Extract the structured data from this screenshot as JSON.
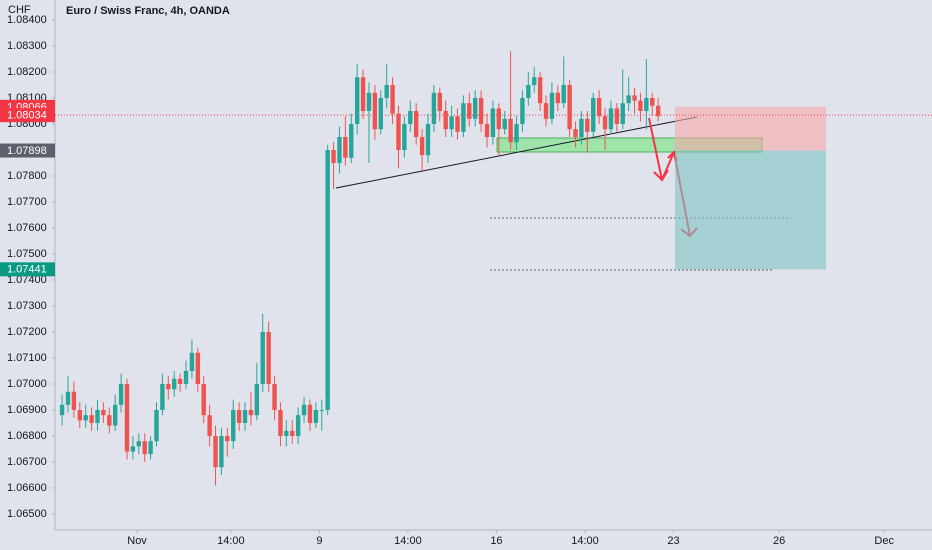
{
  "chart_data": {
    "type": "candlestick",
    "title": "Euro / Swiss Franc, 4h, OANDA",
    "unit": "CHF",
    "up_color": "#26a69a",
    "down_color": "#ef5350",
    "xlim": [
      -1.2,
      147.4
    ],
    "xticks": [
      {
        "value": 12.7,
        "label": "Nov"
      },
      {
        "value": 28.6,
        "label": "14:00"
      },
      {
        "value": 43.6,
        "label": "9"
      },
      {
        "value": 58.6,
        "label": "14:00"
      },
      {
        "value": 73.6,
        "label": "16"
      },
      {
        "value": 88.6,
        "label": "14:00"
      },
      {
        "value": 103.6,
        "label": "23"
      },
      {
        "value": 121.5,
        "label": "26"
      },
      {
        "value": 139.3,
        "label": "Dec"
      }
    ],
    "ylim": [
      1.06446,
      1.08477
    ],
    "yticks": [
      {
        "value": 1.065,
        "label": "1.06500"
      },
      {
        "value": 1.066,
        "label": "1.06600"
      },
      {
        "value": 1.067,
        "label": "1.06700"
      },
      {
        "value": 1.068,
        "label": "1.06800"
      },
      {
        "value": 1.069,
        "label": "1.06900"
      },
      {
        "value": 1.07,
        "label": "1.07000"
      },
      {
        "value": 1.071,
        "label": "1.07100"
      },
      {
        "value": 1.072,
        "label": "1.07200"
      },
      {
        "value": 1.073,
        "label": "1.07300"
      },
      {
        "value": 1.074,
        "label": "1.07400"
      },
      {
        "value": 1.075,
        "label": "1.07500"
      },
      {
        "value": 1.076,
        "label": "1.07600"
      },
      {
        "value": 1.077,
        "label": "1.07700"
      },
      {
        "value": 1.078,
        "label": "1.07800"
      },
      {
        "value": 1.079,
        "label": "1.07900"
      },
      {
        "value": 1.08,
        "label": "1.08000"
      },
      {
        "value": 1.081,
        "label": "1.08100"
      },
      {
        "value": 1.082,
        "label": "1.08200"
      },
      {
        "value": 1.083,
        "label": "1.08300"
      },
      {
        "value": 1.084,
        "label": "1.08400"
      }
    ],
    "open": [
      1.0688,
      1.0692,
      1.0697,
      1.069,
      1.0686,
      1.0688,
      1.0685,
      1.069,
      1.0688,
      1.0684,
      1.0692,
      1.07,
      1.0674,
      1.0676,
      1.0678,
      1.0673,
      1.0678,
      1.069,
      1.07,
      1.0698,
      1.0702,
      1.07,
      1.0705,
      1.0712,
      1.07,
      1.0688,
      1.068,
      1.0668,
      1.068,
      1.0678,
      1.069,
      1.0685,
      1.069,
      1.0688,
      1.07,
      1.072,
      1.07,
      1.069,
      1.068,
      1.0682,
      1.068,
      1.0688,
      1.0692,
      1.0685,
      1.069,
      1.069,
      1.079,
      1.0785,
      1.0795,
      1.0787,
      1.08,
      1.0818,
      1.0805,
      1.0812,
      1.0798,
      1.081,
      1.0815,
      1.0804,
      1.079,
      1.08,
      1.0805,
      1.0795,
      1.0788,
      1.08,
      1.0812,
      1.0805,
      1.0798,
      1.0803,
      1.0797,
      1.0808,
      1.0802,
      1.081,
      1.08,
      1.0795,
      1.0806,
      1.0798,
      1.0802,
      1.0793,
      1.08,
      1.081,
      1.0815,
      1.0818,
      1.0808,
      1.0802,
      1.0812,
      1.0808,
      1.0815,
      1.0798,
      1.0795,
      1.0802,
      1.0797,
      1.081,
      1.0803,
      1.0798,
      1.0806,
      1.08,
      1.0808,
      1.0811,
      1.0809,
      1.0805,
      1.081,
      1.0807
    ],
    "high": [
      1.0696,
      1.0703,
      1.0701,
      1.0693,
      1.0692,
      1.0691,
      1.0694,
      1.0693,
      1.0691,
      1.0696,
      1.0704,
      1.0702,
      1.068,
      1.0681,
      1.0681,
      1.068,
      1.0693,
      1.0704,
      1.0703,
      1.0705,
      1.0704,
      1.0709,
      1.0717,
      1.0714,
      1.0703,
      1.0692,
      1.0684,
      1.0683,
      1.0683,
      1.0694,
      1.0693,
      1.0693,
      1.0697,
      1.0708,
      1.0727,
      1.0724,
      1.0703,
      1.0693,
      1.0686,
      1.0686,
      1.0691,
      1.0695,
      1.0694,
      1.0693,
      1.0694,
      1.0792,
      1.0793,
      1.0799,
      1.0803,
      1.0804,
      1.0823,
      1.0821,
      1.0816,
      1.0815,
      1.0813,
      1.0823,
      1.0818,
      1.0807,
      1.0803,
      1.0809,
      1.0808,
      1.0798,
      1.0804,
      1.0815,
      1.0814,
      1.0809,
      1.0807,
      1.0806,
      1.0811,
      1.0812,
      1.0813,
      1.0813,
      1.0804,
      1.0809,
      1.0808,
      1.0805,
      1.0828,
      1.0803,
      1.0813,
      1.082,
      1.0822,
      1.082,
      1.0811,
      1.0816,
      1.0815,
      1.0826,
      1.0817,
      1.0801,
      1.0805,
      1.0805,
      1.0812,
      1.0813,
      1.0806,
      1.0809,
      1.0808,
      1.0821,
      1.0818,
      1.0814,
      1.0812,
      1.0825,
      1.0812,
      1.081
    ],
    "low": [
      1.0684,
      1.0689,
      1.0687,
      1.0683,
      1.0683,
      1.0682,
      1.0682,
      1.0685,
      1.0681,
      1.0682,
      1.0689,
      1.0671,
      1.0671,
      1.0673,
      1.067,
      1.0671,
      1.0676,
      1.0688,
      1.0694,
      1.0695,
      1.0697,
      1.0698,
      1.0702,
      1.0697,
      1.0685,
      1.0676,
      1.0661,
      1.0665,
      1.0672,
      1.0675,
      1.0682,
      1.0682,
      1.0684,
      1.0686,
      1.0697,
      1.0697,
      1.0686,
      1.0676,
      1.0676,
      1.0677,
      1.0677,
      1.0685,
      1.0682,
      1.0683,
      1.0682,
      1.0688,
      1.0775,
      1.0781,
      1.0784,
      1.0785,
      1.0796,
      1.0802,
      1.0785,
      1.0794,
      1.0796,
      1.0806,
      1.08,
      1.0783,
      1.0787,
      1.0797,
      1.0792,
      1.0782,
      1.0785,
      1.0797,
      1.0801,
      1.0795,
      1.0795,
      1.0794,
      1.0795,
      1.0799,
      1.0799,
      1.0797,
      1.0791,
      1.0792,
      1.0788,
      1.0796,
      1.079,
      1.079,
      1.0797,
      1.0807,
      1.0812,
      1.0805,
      1.0799,
      1.08,
      1.0805,
      1.0806,
      1.0795,
      1.0791,
      1.0792,
      1.0789,
      1.0795,
      1.08,
      1.079,
      1.0796,
      1.0797,
      1.0798,
      1.0805,
      1.0804,
      1.0801,
      1.0798,
      1.0803,
      1.0801
    ],
    "close": [
      1.0692,
      1.0697,
      1.069,
      1.0686,
      1.0688,
      1.0685,
      1.069,
      1.0688,
      1.0684,
      1.0692,
      1.07,
      1.0674,
      1.0676,
      1.0678,
      1.0673,
      1.0678,
      1.069,
      1.07,
      1.0698,
      1.0702,
      1.07,
      1.0705,
      1.0712,
      1.07,
      1.0688,
      1.068,
      1.0668,
      1.068,
      1.0678,
      1.069,
      1.0685,
      1.069,
      1.0688,
      1.07,
      1.072,
      1.07,
      1.069,
      1.068,
      1.0682,
      1.068,
      1.0688,
      1.0692,
      1.0685,
      1.069,
      1.069,
      1.079,
      1.0785,
      1.0795,
      1.0787,
      1.08,
      1.0818,
      1.0805,
      1.0812,
      1.0798,
      1.081,
      1.0815,
      1.0804,
      1.079,
      1.08,
      1.0805,
      1.0795,
      1.0788,
      1.08,
      1.0812,
      1.0805,
      1.0798,
      1.0803,
      1.0797,
      1.0808,
      1.0802,
      1.081,
      1.08,
      1.0795,
      1.0806,
      1.0798,
      1.0802,
      1.0793,
      1.08,
      1.081,
      1.0815,
      1.0818,
      1.0808,
      1.0802,
      1.0812,
      1.0808,
      1.0815,
      1.0798,
      1.0795,
      1.0802,
      1.0797,
      1.081,
      1.0803,
      1.0798,
      1.0806,
      1.08,
      1.0808,
      1.0811,
      1.0809,
      1.0805,
      1.081,
      1.0807,
      1.0803
    ],
    "price_labels": [
      {
        "name": "stop",
        "value": 1.08066,
        "color": "#f23645"
      },
      {
        "name": "last",
        "value": 1.08034,
        "color": "#f23645"
      },
      {
        "name": "entry",
        "value": 1.07898,
        "color": "#5d606b"
      },
      {
        "name": "target",
        "value": 1.07441,
        "color": "#089981"
      }
    ]
  }
}
